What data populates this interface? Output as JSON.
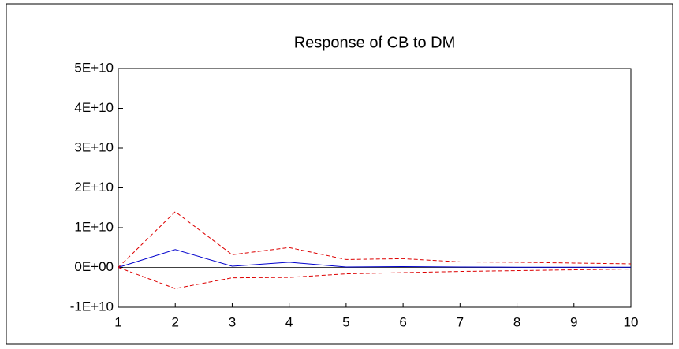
{
  "chart_data": {
    "type": "line",
    "title": "Response of CB to DM",
    "x": [
      1,
      2,
      3,
      4,
      5,
      6,
      7,
      8,
      9,
      10
    ],
    "series": [
      {
        "color": "#0000cc",
        "dash": false,
        "values": [
          0,
          4500000000,
          300000000,
          1300000000,
          100000000,
          200000000,
          100000000,
          50000000,
          50000000,
          50000000
        ]
      },
      {
        "color": "#dd0000",
        "dash": true,
        "values": [
          0,
          14000000000,
          3200000000,
          5000000000,
          2000000000,
          2200000000,
          1400000000,
          1300000000,
          1100000000,
          900000000
        ]
      },
      {
        "color": "#dd0000",
        "dash": true,
        "values": [
          0,
          -5300000000,
          -2600000000,
          -2500000000,
          -1600000000,
          -1300000000,
          -1000000000,
          -800000000,
          -600000000,
          -400000000
        ]
      }
    ],
    "xlim": [
      1,
      10
    ],
    "xticks": [
      1,
      2,
      3,
      4,
      5,
      6,
      7,
      8,
      9,
      10
    ],
    "ylim": [
      -10000000000,
      50000000000
    ],
    "yticks": [
      {
        "value": 50000000000,
        "label": "5E+10"
      },
      {
        "value": 40000000000,
        "label": "4E+10"
      },
      {
        "value": 30000000000,
        "label": "3E+10"
      },
      {
        "value": 20000000000,
        "label": "2E+10"
      },
      {
        "value": 10000000000,
        "label": "1E+10"
      },
      {
        "value": 0,
        "label": "0E+00"
      },
      {
        "value": -10000000000,
        "label": "-1E+10"
      }
    ],
    "zero_line": true
  }
}
